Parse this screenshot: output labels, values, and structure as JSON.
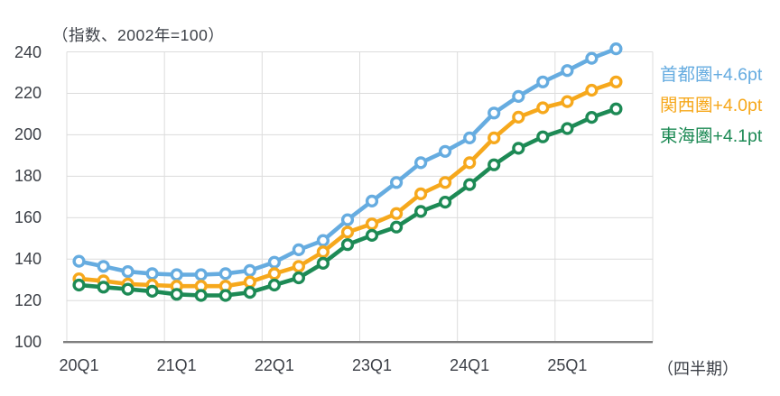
{
  "chart_data": {
    "type": "line",
    "title": "（指数、2002年=100）",
    "x_axis_note": "（四半期）",
    "xlabel": "",
    "ylabel": "",
    "ylim": [
      100,
      240
    ],
    "y_ticks": [
      100,
      120,
      140,
      160,
      180,
      200,
      220,
      240
    ],
    "grid": "both",
    "legend_position": "right-outside",
    "x_slot_count": 24,
    "x_year_gridline_count": 6,
    "categories": [
      "20Q1",
      "20Q2",
      "20Q3",
      "20Q4",
      "21Q1",
      "21Q2",
      "21Q3",
      "21Q4",
      "22Q1",
      "22Q2",
      "22Q3",
      "22Q4",
      "23Q1",
      "23Q2",
      "23Q3",
      "23Q4",
      "24Q1",
      "24Q2",
      "24Q3",
      "24Q4",
      "25Q1",
      "25Q2",
      "25Q3"
    ],
    "x_tick_indices": [
      0,
      4,
      8,
      12,
      16,
      20
    ],
    "x_tick_labels": [
      "20Q1",
      "21Q1",
      "22Q1",
      "23Q1",
      "24Q1",
      "25Q1"
    ],
    "series": [
      {
        "name": "首都圏",
        "annotation": "+4.6pt",
        "color": "#66ace0",
        "values": [
          139,
          136.5,
          134,
          133,
          132.5,
          132.5,
          133,
          134.5,
          138.5,
          144.5,
          149,
          159,
          168,
          177,
          186.5,
          192,
          198.5,
          210.5,
          218.5,
          225.5,
          231,
          236.9,
          241.5
        ]
      },
      {
        "name": "関西圏",
        "annotation": "+4.0pt",
        "color": "#f6a81c",
        "values": [
          130.5,
          129.5,
          128,
          127.5,
          127,
          127,
          127,
          129,
          133,
          136.5,
          143.5,
          153,
          157,
          162,
          171.5,
          177,
          186.5,
          198.5,
          208.5,
          213,
          216,
          221.5,
          225.5
        ]
      },
      {
        "name": "東海圏",
        "annotation": "+4.1pt",
        "color": "#1d8a55",
        "values": [
          127.5,
          126.5,
          125.5,
          124.5,
          123,
          122.5,
          122.5,
          124,
          127.5,
          131,
          138,
          147,
          151.5,
          155.5,
          163,
          167.5,
          176,
          185.5,
          193.5,
          199,
          203,
          208.4,
          212.5
        ]
      }
    ],
    "colors": {
      "gridline": "#dcdcdc",
      "axis_line": "#7f7f7f",
      "text": "#3b3f46",
      "marker_fill": "#ffffff"
    }
  }
}
